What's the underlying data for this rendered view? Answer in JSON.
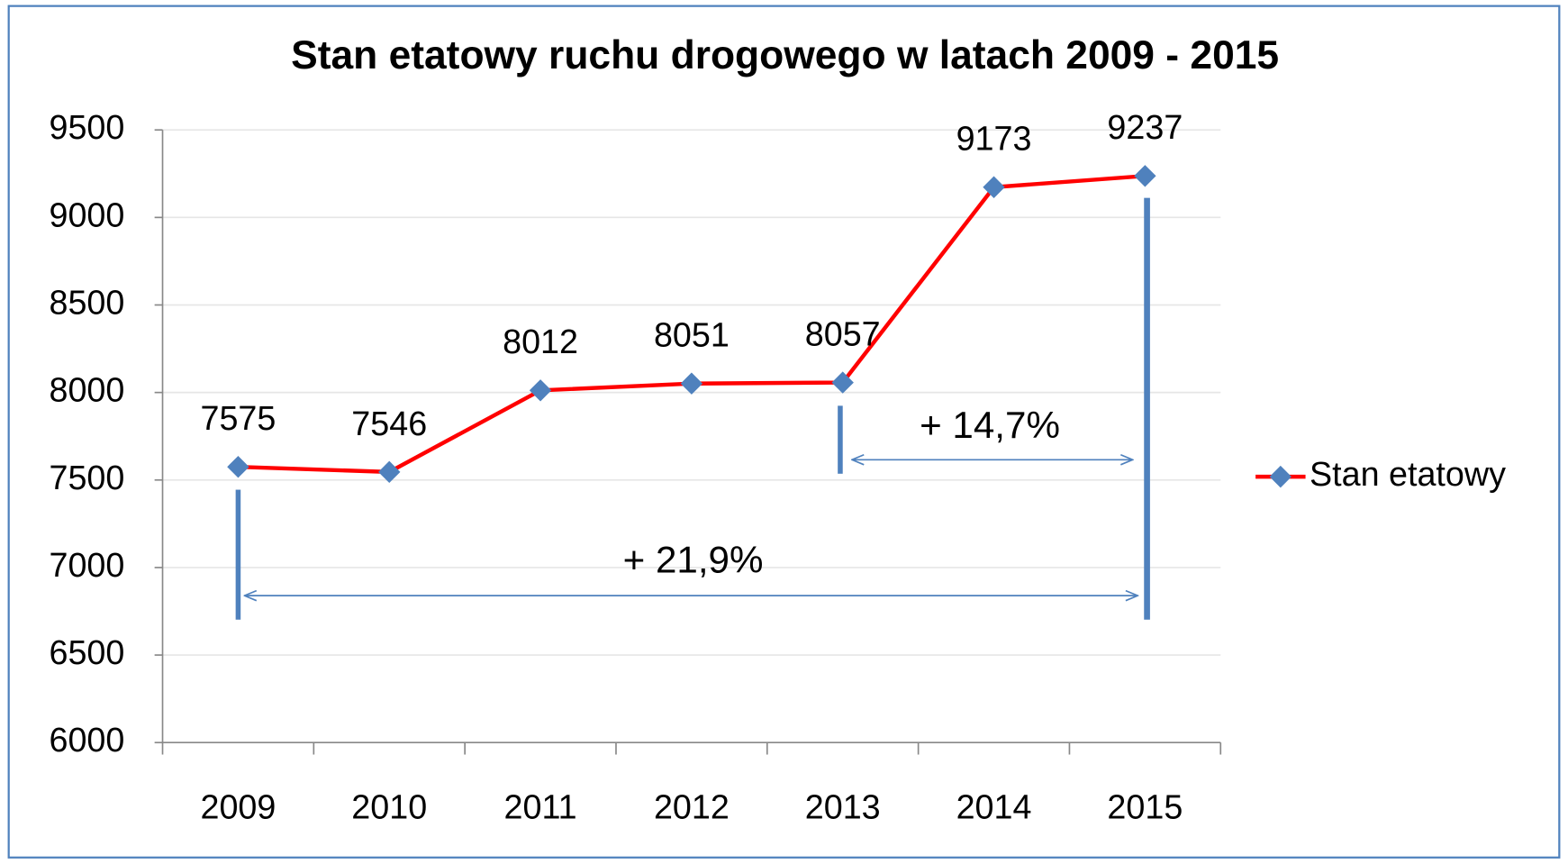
{
  "chart_data": {
    "type": "line",
    "title": "Stan etatowy ruchu drogowego w latach 2009 - 2015",
    "categories": [
      "2009",
      "2010",
      "2011",
      "2012",
      "2013",
      "2014",
      "2015"
    ],
    "series": [
      {
        "name": "Stan etatowy",
        "color": "#ff0000",
        "marker_color": "#4f81bd",
        "values": [
          7575,
          7546,
          8012,
          8051,
          8057,
          9173,
          9237
        ]
      }
    ],
    "ylim": [
      6000,
      9500
    ],
    "yticks": [
      6000,
      6500,
      7000,
      7500,
      8000,
      8500,
      9000,
      9500
    ],
    "grid": true,
    "legend": "right",
    "annotations": [
      "+ 14,7%",
      "+ 21,9%"
    ]
  }
}
